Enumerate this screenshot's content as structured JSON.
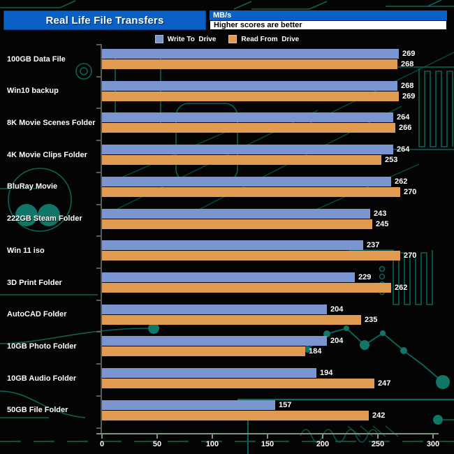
{
  "header": {
    "title": "Real Life File Transfers",
    "unit_label": "MB/s",
    "note": "Higher scores are better",
    "title_bg": "#0b60c6"
  },
  "legend": [
    {
      "label": "Write To  Drive",
      "color": "#7b95d0"
    },
    {
      "label": "Read From  Drive",
      "color": "#e09b50"
    }
  ],
  "chart_data": {
    "type": "bar",
    "orientation": "horizontal",
    "title": "Real Life File Transfers",
    "xlabel": "MB/s",
    "note": "Higher scores are better",
    "xlim": [
      0,
      300
    ],
    "x_ticks": [
      0,
      50,
      100,
      150,
      200,
      250,
      300
    ],
    "grid": false,
    "legend_position": "top",
    "value_labels": true,
    "categories": [
      "100GB Data File",
      "Win10 backup",
      "8K Movie Scenes Folder",
      "4K Movie Clips Folder",
      "BluRay Movie",
      "222GB Steam Folder",
      "Win 11 iso",
      "3D Print Folder",
      "AutoCAD Folder",
      "10GB Photo Folder",
      "10GB Audio Folder",
      "50GB File Folder"
    ],
    "series": [
      {
        "name": "Write To  Drive",
        "color": "#7b95d0",
        "values": [
          269,
          268,
          264,
          264,
          262,
          243,
          237,
          229,
          204,
          204,
          194,
          157
        ]
      },
      {
        "name": "Read From  Drive",
        "color": "#e09b50",
        "values": [
          268,
          269,
          266,
          253,
          270,
          245,
          270,
          262,
          235,
          184,
          247,
          242
        ]
      }
    ]
  },
  "colors": {
    "background": "#040404",
    "circuit_teal": "#0e6e60",
    "circuit_teal_bright": "#178a7a",
    "x_axis": "#80937f",
    "y_axis": "#575c57",
    "text": "#ffffff"
  }
}
